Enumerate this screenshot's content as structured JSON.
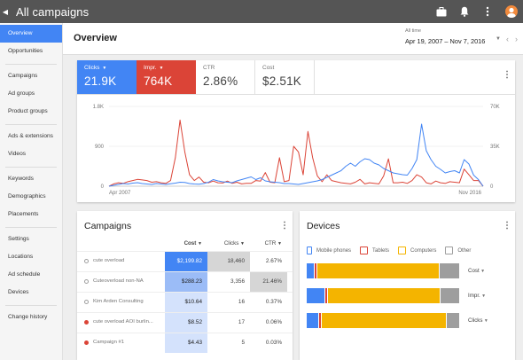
{
  "app": {
    "title": "All campaigns"
  },
  "sidebar": {
    "groups": [
      [
        "Overview",
        "Opportunities"
      ],
      [
        "Campaigns",
        "Ad groups",
        "Product groups"
      ],
      [
        "Ads & extensions",
        "Videos"
      ],
      [
        "Keywords",
        "Demographics",
        "Placements"
      ],
      [
        "Settings",
        "Locations",
        "Ad schedule",
        "Devices"
      ],
      [
        "Change history"
      ]
    ],
    "active": "Overview"
  },
  "header": {
    "title": "Overview",
    "range_label": "All time",
    "range_value": "Apr 19, 2007 – Nov 7, 2016"
  },
  "metrics": [
    {
      "label": "Clicks",
      "value": "21.9K"
    },
    {
      "label": "Impr.",
      "value": "764K"
    },
    {
      "label": "CTR",
      "value": "2.86%"
    },
    {
      "label": "Cost",
      "value": "$2.51K"
    }
  ],
  "colors": {
    "clicks": "#4285f4",
    "impressions": "#db4437",
    "mobile": "#4285f4",
    "tablets": "#db4437",
    "computers": "#f4b400",
    "other": "#9e9e9e"
  },
  "chart_data": {
    "type": "line",
    "x_start_label": "Apr 2007",
    "x_end_label": "Nov 2016",
    "y_left_ticks": [
      "1.8K",
      "900",
      "0"
    ],
    "y_right_ticks": [
      "70K",
      "35K",
      "0"
    ],
    "ylim_left": [
      0,
      1800
    ],
    "ylim_right": [
      0,
      70000
    ],
    "series": [
      {
        "name": "Clicks",
        "axis": "left",
        "values": [
          0,
          20,
          40,
          60,
          50,
          70,
          80,
          60,
          50,
          40,
          60,
          50,
          40,
          55,
          70,
          90,
          85,
          60,
          50,
          45,
          60,
          90,
          150,
          120,
          100,
          90,
          80,
          120,
          150,
          180,
          210,
          150,
          190,
          120,
          100,
          90,
          80,
          60,
          60,
          50,
          40,
          60,
          80,
          100,
          120,
          150,
          200,
          250,
          300,
          350,
          450,
          520,
          450,
          550,
          620,
          600,
          520,
          480,
          400,
          350,
          300,
          280,
          260,
          250,
          400,
          600,
          1400,
          800,
          600,
          450,
          380,
          300,
          330,
          350,
          300,
          600,
          500,
          250,
          150,
          0
        ]
      },
      {
        "name": "Impr.",
        "axis": "right",
        "values": [
          0,
          2000,
          3000,
          2500,
          4000,
          5000,
          6000,
          5500,
          5000,
          3500,
          4000,
          3000,
          2500,
          5000,
          25000,
          58000,
          30000,
          10000,
          5000,
          8000,
          3500,
          3000,
          4500,
          3000,
          2800,
          4500,
          2500,
          3500,
          2000,
          2600,
          2500,
          5000,
          4500,
          12000,
          3500,
          3000,
          25000,
          4000,
          5000,
          35000,
          30000,
          10000,
          48000,
          25000,
          9000,
          4000,
          10000,
          5000,
          4000,
          3000,
          2500,
          2000,
          3500,
          6000,
          2000,
          3000,
          2500,
          2000,
          9000,
          24000,
          3000,
          3000,
          3500,
          2500,
          5000,
          10000,
          8000,
          3000,
          2000,
          4500,
          3000,
          2500,
          4000,
          3500,
          3000,
          15000,
          10000,
          5000,
          5000,
          0
        ]
      }
    ]
  },
  "campaigns": {
    "title": "Campaigns",
    "headers": {
      "cost": "Cost",
      "clicks": "Clicks",
      "ctr": "CTR"
    },
    "rows": [
      {
        "name": "cute overload",
        "status": "gray",
        "cost": "$2,199.82",
        "cost_share": 1.0,
        "clicks": "18,460",
        "ctr": "2.67%"
      },
      {
        "name": "Cuteoverload non-NA",
        "status": "gray",
        "cost": "$288.23",
        "cost_share": 0.13,
        "clicks": "3,356",
        "ctr": "21.46%"
      },
      {
        "name": "Kim Arden Consulting",
        "status": "gray",
        "cost": "$10.64",
        "cost_share": 0.005,
        "clicks": "16",
        "ctr": "0.37%"
      },
      {
        "name": "cute overload AOI burlin...",
        "status": "red",
        "cost": "$8.52",
        "cost_share": 0.004,
        "clicks": "17",
        "ctr": "0.06%"
      },
      {
        "name": "Campaign #1",
        "status": "red",
        "cost": "$4.43",
        "cost_share": 0.002,
        "clicks": "5",
        "ctr": "0.03%"
      }
    ]
  },
  "devices": {
    "title": "Devices",
    "legend": [
      "Mobile phones",
      "Tablets",
      "Computers",
      "Other"
    ],
    "rows": [
      {
        "label": "Cost",
        "shares": [
          0.05,
          0.02,
          0.8,
          0.13
        ]
      },
      {
        "label": "Impr.",
        "shares": [
          0.12,
          0.02,
          0.74,
          0.12
        ]
      },
      {
        "label": "Clicks",
        "shares": [
          0.08,
          0.02,
          0.82,
          0.08
        ]
      }
    ]
  }
}
